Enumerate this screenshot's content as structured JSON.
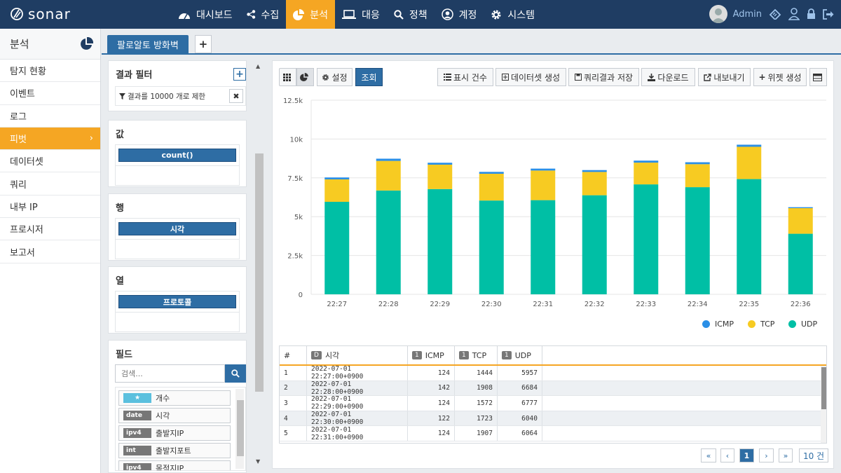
{
  "brand": "sonar",
  "nav": [
    {
      "label": "대시보드",
      "icon": "dashboard-icon",
      "active": false
    },
    {
      "label": "수집",
      "icon": "share-icon",
      "active": false
    },
    {
      "label": "분석",
      "icon": "pie-chart-icon",
      "active": true
    },
    {
      "label": "대응",
      "icon": "laptop-icon",
      "active": false
    },
    {
      "label": "정책",
      "icon": "search-icon",
      "active": false
    },
    {
      "label": "계정",
      "icon": "user-circle-icon",
      "active": false
    },
    {
      "label": "시스템",
      "icon": "gear-icon",
      "active": false
    }
  ],
  "user": {
    "name": "Admin"
  },
  "sidebar": {
    "title": "분석",
    "items": [
      "탐지 현황",
      "이벤트",
      "로그",
      "피벗",
      "데이터셋",
      "쿼리",
      "내부 IP",
      "프로시저",
      "보고서"
    ],
    "active_index": 3
  },
  "tab": {
    "label": "팔로알토 방화벽"
  },
  "filter": {
    "title": "결과 필터",
    "limit_text": "결과를 10000 개로 제한"
  },
  "values": {
    "title": "값",
    "pill": "count()"
  },
  "rows": {
    "title": "행",
    "pill": "시각"
  },
  "cols": {
    "title": "열",
    "pill": "프로토콜"
  },
  "fields": {
    "title": "필드",
    "search_placeholder": "검색...",
    "items": [
      {
        "type": "★",
        "name": "개수"
      },
      {
        "type": "date",
        "name": "시각"
      },
      {
        "type": "ipv4",
        "name": "출발지IP"
      },
      {
        "type": "int",
        "name": "출발지포트"
      },
      {
        "type": "ipv4",
        "name": "목적지IP"
      }
    ]
  },
  "toolbar": {
    "settings": "설정",
    "query": "조회",
    "show_count": "표시 건수",
    "create_dataset": "데이터셋 생성",
    "save_query": "쿼리결과 저장",
    "download": "다운로드",
    "export": "내보내기",
    "create_widget": "위젯 생성"
  },
  "colors": {
    "icmp": "#2b8fe6",
    "tcp": "#f7cb22",
    "udp": "#00bfa5",
    "accent": "#f5a623",
    "primary": "#2e6da4"
  },
  "chart_data": {
    "type": "bar",
    "stacked": true,
    "categories": [
      "22:27",
      "22:28",
      "22:29",
      "22:30",
      "22:31",
      "22:32",
      "22:33",
      "22:34",
      "22:35",
      "22:36"
    ],
    "series": [
      {
        "name": "UDP",
        "values": [
          5957,
          6684,
          6777,
          6040,
          6064,
          6380,
          7080,
          6900,
          7420,
          3900
        ]
      },
      {
        "name": "TCP",
        "values": [
          1444,
          1908,
          1572,
          1723,
          1907,
          1500,
          1400,
          1480,
          2080,
          1650
        ]
      },
      {
        "name": "ICMP",
        "values": [
          124,
          142,
          124,
          122,
          124,
          120,
          130,
          125,
          135,
          60
        ]
      }
    ],
    "yticks": [
      "0",
      "2.5k",
      "5k",
      "7.5k",
      "10k",
      "12.5k"
    ],
    "ylim": [
      0,
      12500
    ],
    "legend": [
      "ICMP",
      "TCP",
      "UDP"
    ],
    "legend_position": "bottom-right"
  },
  "table": {
    "headers": [
      {
        "label": "#",
        "badge": ""
      },
      {
        "label": "시각",
        "badge": "D"
      },
      {
        "label": "ICMP",
        "badge": "1"
      },
      {
        "label": "TCP",
        "badge": "1"
      },
      {
        "label": "UDP",
        "badge": "1"
      }
    ],
    "rows": [
      [
        "1",
        "2022-07-01 22:27:00+0900",
        "124",
        "1444",
        "5957"
      ],
      [
        "2",
        "2022-07-01 22:28:00+0900",
        "142",
        "1908",
        "6684"
      ],
      [
        "3",
        "2022-07-01 22:29:00+0900",
        "124",
        "1572",
        "6777"
      ],
      [
        "4",
        "2022-07-01 22:30:00+0900",
        "122",
        "1723",
        "6040"
      ],
      [
        "5",
        "2022-07-01 22:31:00+0900",
        "124",
        "1907",
        "6064"
      ]
    ]
  },
  "pagination": {
    "first": "«",
    "prev": "‹",
    "current": "1",
    "next": "›",
    "last": "»",
    "page_size": "10 건"
  }
}
